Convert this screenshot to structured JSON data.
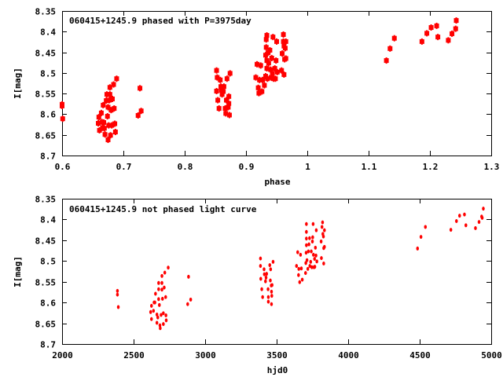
{
  "chart_data": [
    {
      "type": "scatter",
      "title": "060415+1245.9 phased with P=3975day",
      "xlabel": "phase",
      "ylabel": "I[mag]",
      "xlim": [
        0.6,
        1.3
      ],
      "ylim": [
        8.35,
        8.7
      ],
      "y_inverted": true,
      "xticks": [
        "0.6",
        "0.7",
        "0.8",
        "0.9",
        "1",
        "1.1",
        "1.2",
        "1.3"
      ],
      "yticks": [
        "8.35",
        "8.4",
        "8.45",
        "8.5",
        "8.55",
        "8.6",
        "8.65",
        "8.7"
      ],
      "marker_color": "#ff0000",
      "points": [
        [
          0.6,
          8.576
        ],
        [
          0.6,
          8.58
        ],
        [
          0.601,
          8.611
        ],
        [
          0.659,
          8.622
        ],
        [
          0.66,
          8.607
        ],
        [
          0.661,
          8.639
        ],
        [
          0.664,
          8.597
        ],
        [
          0.665,
          8.619
        ],
        [
          0.666,
          8.633
        ],
        [
          0.667,
          8.578
        ],
        [
          0.668,
          8.62
        ],
        [
          0.669,
          8.634
        ],
        [
          0.67,
          8.649
        ],
        [
          0.672,
          8.567
        ],
        [
          0.673,
          8.552
        ],
        [
          0.674,
          8.605
        ],
        [
          0.675,
          8.662
        ],
        [
          0.675,
          8.583
        ],
        [
          0.676,
          8.627
        ],
        [
          0.677,
          8.566
        ],
        [
          0.678,
          8.552
        ],
        [
          0.678,
          8.535
        ],
        [
          0.679,
          8.651
        ],
        [
          0.68,
          8.59
        ],
        [
          0.681,
          8.627
        ],
        [
          0.682,
          8.563
        ],
        [
          0.684,
          8.528
        ],
        [
          0.685,
          8.586
        ],
        [
          0.686,
          8.623
        ],
        [
          0.687,
          8.643
        ],
        [
          0.689,
          8.514
        ],
        [
          0.724,
          8.603
        ],
        [
          0.727,
          8.537
        ],
        [
          0.729,
          8.592
        ],
        [
          0.852,
          8.494
        ],
        [
          0.853,
          8.511
        ],
        [
          0.852,
          8.544
        ],
        [
          0.854,
          8.566
        ],
        [
          0.856,
          8.586
        ],
        [
          0.858,
          8.517
        ],
        [
          0.859,
          8.533
        ],
        [
          0.86,
          8.542
        ],
        [
          0.861,
          8.552
        ],
        [
          0.863,
          8.545
        ],
        [
          0.864,
          8.533
        ],
        [
          0.866,
          8.586
        ],
        [
          0.867,
          8.598
        ],
        [
          0.868,
          8.566
        ],
        [
          0.869,
          8.514
        ],
        [
          0.871,
          8.583
        ],
        [
          0.872,
          8.574
        ],
        [
          0.872,
          8.557
        ],
        [
          0.873,
          8.602
        ],
        [
          0.874,
          8.501
        ],
        [
          0.916,
          8.511
        ],
        [
          0.918,
          8.479
        ],
        [
          0.92,
          8.536
        ],
        [
          0.921,
          8.549
        ],
        [
          0.922,
          8.517
        ],
        [
          0.924,
          8.482
        ],
        [
          0.926,
          8.545
        ],
        [
          0.927,
          8.517
        ],
        [
          0.93,
          8.53
        ],
        [
          0.932,
          8.508
        ],
        [
          0.932,
          8.457
        ],
        [
          0.933,
          8.438
        ],
        [
          0.933,
          8.419
        ],
        [
          0.934,
          8.409
        ],
        [
          0.934,
          8.489
        ],
        [
          0.934,
          8.47
        ],
        [
          0.935,
          8.514
        ],
        [
          0.936,
          8.451
        ],
        [
          0.937,
          8.476
        ],
        [
          0.939,
          8.445
        ],
        [
          0.94,
          8.492
        ],
        [
          0.941,
          8.511
        ],
        [
          0.942,
          8.464
        ],
        [
          0.943,
          8.501
        ],
        [
          0.944,
          8.413
        ],
        [
          0.945,
          8.514
        ],
        [
          0.947,
          8.489
        ],
        [
          0.948,
          8.514
        ],
        [
          0.949,
          8.47
        ],
        [
          0.95,
          8.424
        ],
        [
          0.951,
          8.498
        ],
        [
          0.958,
          8.494
        ],
        [
          0.959,
          8.453
        ],
        [
          0.961,
          8.407
        ],
        [
          0.961,
          8.424
        ],
        [
          0.962,
          8.435
        ],
        [
          0.962,
          8.504
        ],
        [
          0.963,
          8.467
        ],
        [
          0.964,
          8.44
        ],
        [
          0.965,
          8.465
        ],
        [
          0.965,
          8.424
        ],
        [
          1.129,
          8.47
        ],
        [
          1.135,
          8.441
        ],
        [
          1.142,
          8.416
        ],
        [
          1.187,
          8.424
        ],
        [
          1.195,
          8.404
        ],
        [
          1.202,
          8.39
        ],
        [
          1.211,
          8.386
        ],
        [
          1.213,
          8.413
        ],
        [
          1.23,
          8.421
        ],
        [
          1.236,
          8.405
        ],
        [
          1.242,
          8.393
        ],
        [
          1.243,
          8.373
        ]
      ]
    },
    {
      "type": "scatter",
      "title": "060415+1245.9 not phased light curve",
      "xlabel": "hjd0",
      "ylabel": "I[mag]",
      "xlim": [
        2000,
        5000
      ],
      "ylim": [
        8.35,
        8.7
      ],
      "y_inverted": true,
      "xticks": [
        "2000",
        "2500",
        "3000",
        "3500",
        "4000",
        "4500",
        "5000"
      ],
      "yticks": [
        "8.35",
        "8.4",
        "8.45",
        "8.5",
        "8.55",
        "8.6",
        "8.65",
        "8.7"
      ],
      "marker_color": "#ff0000",
      "points": [
        [
          2387,
          8.572
        ],
        [
          2387,
          8.581
        ],
        [
          2393,
          8.611
        ],
        [
          2619,
          8.623
        ],
        [
          2625,
          8.608
        ],
        [
          2625,
          8.64
        ],
        [
          2639,
          8.62
        ],
        [
          2643,
          8.6
        ],
        [
          2649,
          8.6
        ],
        [
          2653,
          8.579
        ],
        [
          2663,
          8.629
        ],
        [
          2663,
          8.649
        ],
        [
          2669,
          8.636
        ],
        [
          2675,
          8.592
        ],
        [
          2675,
          8.568
        ],
        [
          2675,
          8.553
        ],
        [
          2680,
          8.606
        ],
        [
          2684,
          8.655
        ],
        [
          2686,
          8.662
        ],
        [
          2692,
          8.63
        ],
        [
          2698,
          8.553
        ],
        [
          2698,
          8.569
        ],
        [
          2698,
          8.536
        ],
        [
          2702,
          8.591
        ],
        [
          2708,
          8.652
        ],
        [
          2708,
          8.626
        ],
        [
          2714,
          8.564
        ],
        [
          2718,
          8.528
        ],
        [
          2724,
          8.587
        ],
        [
          2726,
          8.631
        ],
        [
          2728,
          8.643
        ],
        [
          2742,
          8.516
        ],
        [
          2884,
          8.538
        ],
        [
          2878,
          8.604
        ],
        [
          2899,
          8.593
        ],
        [
          3387,
          8.494
        ],
        [
          3387,
          8.512
        ],
        [
          3389,
          8.543
        ],
        [
          3396,
          8.568
        ],
        [
          3402,
          8.587
        ],
        [
          3412,
          8.52
        ],
        [
          3414,
          8.532
        ],
        [
          3422,
          8.549
        ],
        [
          3426,
          8.54
        ],
        [
          3430,
          8.531
        ],
        [
          3440,
          8.568
        ],
        [
          3442,
          8.587
        ],
        [
          3442,
          8.598
        ],
        [
          3452,
          8.51
        ],
        [
          3456,
          8.547
        ],
        [
          3458,
          8.52
        ],
        [
          3462,
          8.559
        ],
        [
          3464,
          8.574
        ],
        [
          3466,
          8.584
        ],
        [
          3468,
          8.558
        ],
        [
          3475,
          8.502
        ],
        [
          3464,
          8.604
        ],
        [
          3639,
          8.512
        ],
        [
          3647,
          8.479
        ],
        [
          3653,
          8.534
        ],
        [
          3655,
          8.519
        ],
        [
          3661,
          8.551
        ],
        [
          3667,
          8.485
        ],
        [
          3673,
          8.518
        ],
        [
          3679,
          8.545
        ],
        [
          3702,
          8.529
        ],
        [
          3704,
          8.505
        ],
        [
          3706,
          8.48
        ],
        [
          3708,
          8.462
        ],
        [
          3708,
          8.446
        ],
        [
          3708,
          8.43
        ],
        [
          3708,
          8.411
        ],
        [
          3712,
          8.498
        ],
        [
          3718,
          8.519
        ],
        [
          3722,
          8.477
        ],
        [
          3726,
          8.46
        ],
        [
          3730,
          8.445
        ],
        [
          3732,
          8.512
        ],
        [
          3738,
          8.502
        ],
        [
          3742,
          8.477
        ],
        [
          3746,
          8.515
        ],
        [
          3750,
          8.453
        ],
        [
          3752,
          8.443
        ],
        [
          3755,
          8.411
        ],
        [
          3757,
          8.485
        ],
        [
          3761,
          8.515
        ],
        [
          3765,
          8.495
        ],
        [
          3767,
          8.514
        ],
        [
          3771,
          8.468
        ],
        [
          3775,
          8.487
        ],
        [
          3777,
          8.426
        ],
        [
          3781,
          8.501
        ],
        [
          3811,
          8.453
        ],
        [
          3813,
          8.493
        ],
        [
          3817,
          8.418
        ],
        [
          3821,
          8.407
        ],
        [
          3823,
          8.435
        ],
        [
          3827,
          8.441
        ],
        [
          3829,
          8.469
        ],
        [
          3829,
          8.506
        ],
        [
          3834,
          8.426
        ],
        [
          3834,
          8.466
        ],
        [
          4485,
          8.47
        ],
        [
          4509,
          8.442
        ],
        [
          4540,
          8.418
        ],
        [
          4718,
          8.425
        ],
        [
          4757,
          8.404
        ],
        [
          4779,
          8.391
        ],
        [
          4813,
          8.388
        ],
        [
          4823,
          8.414
        ],
        [
          4890,
          8.421
        ],
        [
          4915,
          8.406
        ],
        [
          4933,
          8.393
        ],
        [
          4937,
          8.396
        ],
        [
          4945,
          8.374
        ]
      ]
    }
  ]
}
